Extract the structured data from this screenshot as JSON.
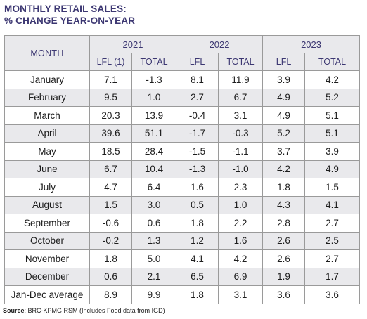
{
  "title": {
    "line1": "MONTHLY RETAIL SALES:",
    "line2": "% CHANGE YEAR-ON-YEAR"
  },
  "table": {
    "month_header": "MONTH",
    "years": [
      "2021",
      "2022",
      "2023"
    ],
    "sub_headers": [
      "LFL (1)",
      "TOTAL",
      "LFL",
      "TOTAL",
      "LFL",
      "TOTAL"
    ],
    "rows": [
      {
        "month": "January",
        "values": [
          "7.1",
          "-1.3",
          "8.1",
          "11.9",
          "3.9",
          "4.2"
        ]
      },
      {
        "month": "February",
        "values": [
          "9.5",
          "1.0",
          "2.7",
          "6.7",
          "4.9",
          "5.2"
        ]
      },
      {
        "month": "March",
        "values": [
          "20.3",
          "13.9",
          "-0.4",
          "3.1",
          "4.9",
          "5.1"
        ]
      },
      {
        "month": "April",
        "values": [
          "39.6",
          "51.1",
          "-1.7",
          "-0.3",
          "5.2",
          "5.1"
        ]
      },
      {
        "month": "May",
        "values": [
          "18.5",
          "28.4",
          "-1.5",
          "-1.1",
          "3.7",
          "3.9"
        ]
      },
      {
        "month": "June",
        "values": [
          "6.7",
          "10.4",
          "-1.3",
          "-1.0",
          "4.2",
          "4.9"
        ]
      },
      {
        "month": "July",
        "values": [
          "4.7",
          "6.4",
          "1.6",
          "2.3",
          "1.8",
          "1.5"
        ]
      },
      {
        "month": "August",
        "values": [
          "1.5",
          "3.0",
          "0.5",
          "1.0",
          "4.3",
          "4.1"
        ]
      },
      {
        "month": "September",
        "values": [
          "-0.6",
          "0.6",
          "1.8",
          "2.2",
          "2.8",
          "2.7"
        ]
      },
      {
        "month": "October",
        "values": [
          "-0.2",
          "1.3",
          "1.2",
          "1.6",
          "2.6",
          "2.5"
        ]
      },
      {
        "month": "November",
        "values": [
          "1.8",
          "5.0",
          "4.1",
          "4.2",
          "2.6",
          "2.7"
        ]
      },
      {
        "month": "December",
        "values": [
          "0.6",
          "2.1",
          "6.5",
          "6.9",
          "1.9",
          "1.7"
        ]
      },
      {
        "month": "Jan-Dec average",
        "values": [
          "8.9",
          "9.9",
          "1.8",
          "3.1",
          "3.6",
          "3.6"
        ]
      }
    ]
  },
  "source": {
    "label": "Source",
    "text": ": BRC-KPMG RSM (Includes Food data from IGD)"
  },
  "colors": {
    "heading": "#3c3772",
    "row_shade": "#e9e9ec",
    "border": "#9a9a9a"
  }
}
